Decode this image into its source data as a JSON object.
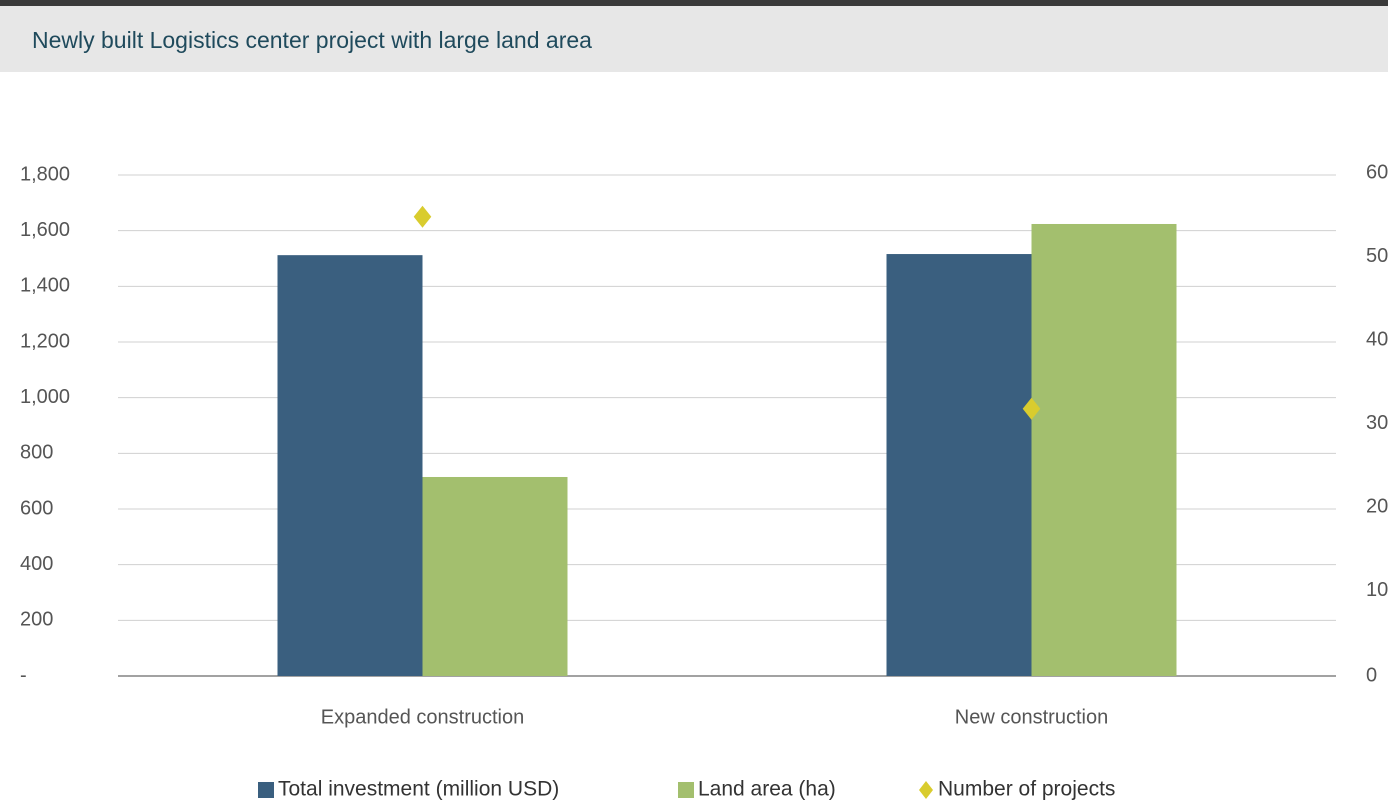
{
  "chart_data": {
    "type": "bar",
    "title": "Newly built Logistics center project with large land area",
    "categories": [
      "Expanded construction",
      "New construction"
    ],
    "series": [
      {
        "name": "Total investment (million USD)",
        "color": "#3a5f7f",
        "values": [
          1512,
          1516
        ]
      },
      {
        "name": "Land area (ha)",
        "color": "#a3bf6e",
        "values": [
          715,
          1624
        ]
      },
      {
        "name": "Number of projects",
        "color": "#d9cc2e",
        "values": [
          55,
          32
        ],
        "axis": "y2",
        "marker": "diamond"
      }
    ],
    "ylim": [
      0,
      1800
    ],
    "yticks": [
      {
        "value": 0,
        "label": "-"
      },
      200,
      400,
      600,
      800,
      {
        "value": 1000,
        "label": "1,000"
      },
      {
        "value": 1200,
        "label": "1,200"
      },
      {
        "value": 1400,
        "label": "1,400"
      },
      {
        "value": 1600,
        "label": "1,600"
      },
      {
        "value": 1800,
        "label": "1,800"
      }
    ],
    "y2lim": [
      0,
      60
    ],
    "y2ticks": [
      0,
      10,
      20,
      30,
      40,
      50,
      60
    ],
    "grid": true,
    "legend": "bottom"
  }
}
